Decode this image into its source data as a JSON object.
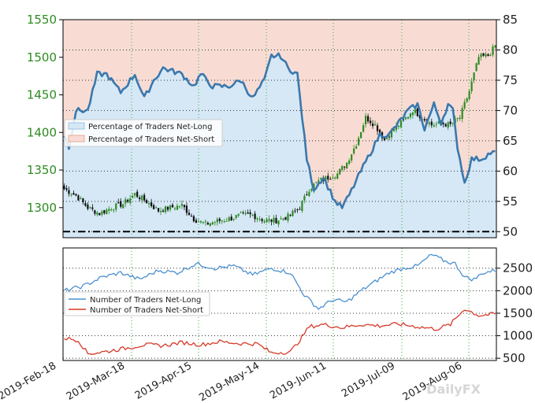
{
  "chart_data": [
    {
      "type": "candlestick+line",
      "panel": "top",
      "x_dates": [
        "2019-Feb-18",
        "2019-Mar-18",
        "2019-Apr-15",
        "2019-May-14",
        "2019-Jun-11",
        "2019-Jul-09",
        "2019-Aug-06"
      ],
      "y_left": {
        "lim": [
          1260,
          1550
        ],
        "ticks": [
          "1550",
          "1500",
          "1450",
          "1400",
          "1350",
          "1300"
        ]
      },
      "y_right": {
        "lim": [
          49,
          85
        ],
        "ticks": [
          "85",
          "80",
          "75",
          "70",
          "65",
          "60",
          "55",
          "50"
        ]
      },
      "reference_line_right": 50,
      "grid": true,
      "legend": {
        "placement": "center-left",
        "entries": [
          "Percentage of Traders Net-Long",
          "Percentage of Traders Net-Short"
        ]
      },
      "colors": {
        "net_long_fill": "#d6e8f6",
        "net_short_fill": "#f8dcd4",
        "line": "#3a78ad",
        "candle_up": "#2e8b22",
        "candle_down": "#111111",
        "left_axis": "#2e8b22"
      },
      "price_close_keyframes": [
        {
          "i": 0,
          "v": 1325
        },
        {
          "i": 5,
          "v": 1316
        },
        {
          "i": 10,
          "v": 1300
        },
        {
          "i": 15,
          "v": 1292
        },
        {
          "i": 20,
          "v": 1300
        },
        {
          "i": 25,
          "v": 1305
        },
        {
          "i": 30,
          "v": 1318
        },
        {
          "i": 35,
          "v": 1308
        },
        {
          "i": 40,
          "v": 1296
        },
        {
          "i": 45,
          "v": 1300
        },
        {
          "i": 50,
          "v": 1303
        },
        {
          "i": 55,
          "v": 1285
        },
        {
          "i": 60,
          "v": 1278
        },
        {
          "i": 65,
          "v": 1282
        },
        {
          "i": 70,
          "v": 1285
        },
        {
          "i": 75,
          "v": 1290
        },
        {
          "i": 80,
          "v": 1290
        },
        {
          "i": 85,
          "v": 1283
        },
        {
          "i": 90,
          "v": 1283
        },
        {
          "i": 95,
          "v": 1288
        },
        {
          "i": 100,
          "v": 1300
        },
        {
          "i": 104,
          "v": 1325
        },
        {
          "i": 108,
          "v": 1335
        },
        {
          "i": 112,
          "v": 1340
        },
        {
          "i": 116,
          "v": 1345
        },
        {
          "i": 120,
          "v": 1360
        },
        {
          "i": 124,
          "v": 1385
        },
        {
          "i": 128,
          "v": 1420
        },
        {
          "i": 132,
          "v": 1410
        },
        {
          "i": 136,
          "v": 1390
        },
        {
          "i": 140,
          "v": 1405
        },
        {
          "i": 144,
          "v": 1415
        },
        {
          "i": 148,
          "v": 1430
        },
        {
          "i": 152,
          "v": 1420
        },
        {
          "i": 156,
          "v": 1410
        },
        {
          "i": 160,
          "v": 1412
        },
        {
          "i": 164,
          "v": 1410
        },
        {
          "i": 168,
          "v": 1420
        },
        {
          "i": 172,
          "v": 1455
        },
        {
          "i": 176,
          "v": 1500
        },
        {
          "i": 180,
          "v": 1502
        },
        {
          "i": 183,
          "v": 1515
        }
      ],
      "net_long_pct_keyframes": [
        {
          "i": 0,
          "v": 66
        },
        {
          "i": 2,
          "v": 64
        },
        {
          "i": 5,
          "v": 70
        },
        {
          "i": 10,
          "v": 70
        },
        {
          "i": 14,
          "v": 76
        },
        {
          "i": 18,
          "v": 76
        },
        {
          "i": 24,
          "v": 73
        },
        {
          "i": 30,
          "v": 76
        },
        {
          "i": 34,
          "v": 72
        },
        {
          "i": 38,
          "v": 75
        },
        {
          "i": 42,
          "v": 77
        },
        {
          "i": 50,
          "v": 76
        },
        {
          "i": 55,
          "v": 74
        },
        {
          "i": 58,
          "v": 76
        },
        {
          "i": 63,
          "v": 74
        },
        {
          "i": 70,
          "v": 74
        },
        {
          "i": 75,
          "v": 75
        },
        {
          "i": 80,
          "v": 72
        },
        {
          "i": 85,
          "v": 75
        },
        {
          "i": 88,
          "v": 79
        },
        {
          "i": 92,
          "v": 79
        },
        {
          "i": 95,
          "v": 77
        },
        {
          "i": 99,
          "v": 76
        },
        {
          "i": 103,
          "v": 62
        },
        {
          "i": 106,
          "v": 57
        },
        {
          "i": 110,
          "v": 59
        },
        {
          "i": 115,
          "v": 55
        },
        {
          "i": 118,
          "v": 54
        },
        {
          "i": 121,
          "v": 56
        },
        {
          "i": 126,
          "v": 60
        },
        {
          "i": 130,
          "v": 63
        },
        {
          "i": 134,
          "v": 66
        },
        {
          "i": 138,
          "v": 66
        },
        {
          "i": 142,
          "v": 68
        },
        {
          "i": 146,
          "v": 70
        },
        {
          "i": 150,
          "v": 71
        },
        {
          "i": 153,
          "v": 67
        },
        {
          "i": 157,
          "v": 71
        },
        {
          "i": 160,
          "v": 68
        },
        {
          "i": 163,
          "v": 71
        },
        {
          "i": 165,
          "v": 70
        },
        {
          "i": 167,
          "v": 64
        },
        {
          "i": 170,
          "v": 58
        },
        {
          "i": 173,
          "v": 62
        },
        {
          "i": 177,
          "v": 62
        },
        {
          "i": 181,
          "v": 63
        },
        {
          "i": 183,
          "v": 63
        }
      ]
    },
    {
      "type": "line",
      "panel": "bottom",
      "x_dates": [
        "2019-Feb-18",
        "2019-Mar-18",
        "2019-Apr-15",
        "2019-May-14",
        "2019-Jun-11",
        "2019-Jul-09",
        "2019-Aug-06"
      ],
      "y_right": {
        "lim": [
          450,
          2950
        ],
        "ticks": [
          "2500",
          "2000",
          "1500",
          "1000",
          "500"
        ]
      },
      "grid": true,
      "legend": {
        "placement": "center-left",
        "entries": [
          "Number of Traders Net-Long",
          "Number of Traders Net-Short"
        ]
      },
      "colors": {
        "net_long": "#4a90d0",
        "net_short": "#d63a2a"
      },
      "series": [
        {
          "name": "Number of Traders Net-Long",
          "keyframes": [
            {
              "i": 0,
              "v": 2000
            },
            {
              "i": 8,
              "v": 2100
            },
            {
              "i": 16,
              "v": 2300
            },
            {
              "i": 24,
              "v": 2400
            },
            {
              "i": 32,
              "v": 2250
            },
            {
              "i": 40,
              "v": 2450
            },
            {
              "i": 48,
              "v": 2400
            },
            {
              "i": 56,
              "v": 2600
            },
            {
              "i": 64,
              "v": 2500
            },
            {
              "i": 72,
              "v": 2550
            },
            {
              "i": 80,
              "v": 2350
            },
            {
              "i": 88,
              "v": 2500
            },
            {
              "i": 96,
              "v": 2400
            },
            {
              "i": 102,
              "v": 1900
            },
            {
              "i": 108,
              "v": 1600
            },
            {
              "i": 114,
              "v": 1800
            },
            {
              "i": 120,
              "v": 1750
            },
            {
              "i": 126,
              "v": 2000
            },
            {
              "i": 132,
              "v": 2200
            },
            {
              "i": 138,
              "v": 2400
            },
            {
              "i": 144,
              "v": 2500
            },
            {
              "i": 150,
              "v": 2550
            },
            {
              "i": 156,
              "v": 2800
            },
            {
              "i": 162,
              "v": 2650
            },
            {
              "i": 166,
              "v": 2600
            },
            {
              "i": 170,
              "v": 2300
            },
            {
              "i": 174,
              "v": 2250
            },
            {
              "i": 178,
              "v": 2400
            },
            {
              "i": 183,
              "v": 2450
            }
          ]
        },
        {
          "name": "Number of Traders Net-Short",
          "keyframes": [
            {
              "i": 0,
              "v": 950
            },
            {
              "i": 6,
              "v": 900
            },
            {
              "i": 10,
              "v": 600
            },
            {
              "i": 18,
              "v": 650
            },
            {
              "i": 26,
              "v": 720
            },
            {
              "i": 34,
              "v": 800
            },
            {
              "i": 42,
              "v": 780
            },
            {
              "i": 50,
              "v": 850
            },
            {
              "i": 58,
              "v": 800
            },
            {
              "i": 66,
              "v": 870
            },
            {
              "i": 74,
              "v": 830
            },
            {
              "i": 82,
              "v": 820
            },
            {
              "i": 88,
              "v": 620
            },
            {
              "i": 96,
              "v": 640
            },
            {
              "i": 100,
              "v": 900
            },
            {
              "i": 104,
              "v": 1200
            },
            {
              "i": 110,
              "v": 1250
            },
            {
              "i": 118,
              "v": 1180
            },
            {
              "i": 126,
              "v": 1250
            },
            {
              "i": 134,
              "v": 1220
            },
            {
              "i": 142,
              "v": 1260
            },
            {
              "i": 150,
              "v": 1200
            },
            {
              "i": 158,
              "v": 1150
            },
            {
              "i": 164,
              "v": 1250
            },
            {
              "i": 170,
              "v": 1600
            },
            {
              "i": 176,
              "v": 1450
            },
            {
              "i": 183,
              "v": 1480
            }
          ]
        }
      ]
    }
  ],
  "watermark": "DailyFX"
}
